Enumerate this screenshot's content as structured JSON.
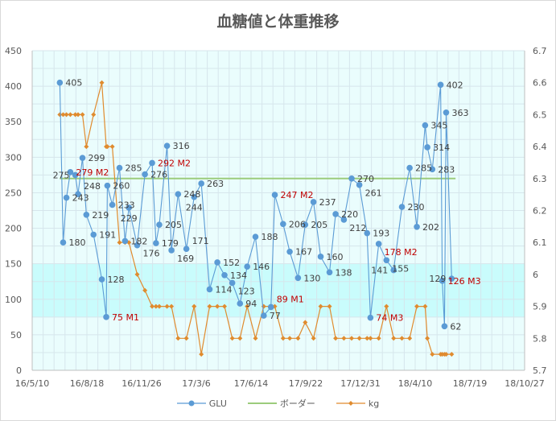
{
  "chart_data": {
    "type": "line",
    "title": "血糖値と体重推移",
    "x_origin_date": "16/5/10",
    "x_unit": "days since 16/5/10",
    "x_ticks": [
      "16/5/10",
      "16/8/18",
      "16/11/26",
      "17/3/6",
      "17/6/14",
      "17/9/22",
      "17/12/31",
      "18/4/10",
      "18/7/19",
      "18/10/27"
    ],
    "x_tick_step_days": 99,
    "xlim": [
      0,
      891
    ],
    "y_left": {
      "ylim": [
        0,
        450
      ],
      "ticks": [
        "0",
        "50",
        "100",
        "150",
        "200",
        "250",
        "300",
        "350",
        "400",
        "450"
      ]
    },
    "y_right": {
      "ylim": [
        5.7,
        6.7
      ],
      "ticks": [
        "5.7",
        "5.8",
        "5.9",
        "6",
        "6.1",
        "6.2",
        "6.3",
        "6.4",
        "6.5",
        "6.6",
        "6.7"
      ]
    },
    "target_band": {
      "from": 75,
      "to": 150,
      "color": "#c9fcfc"
    },
    "grid": true,
    "legend_position": "bottom",
    "series": [
      {
        "name": "GLU",
        "axis": "left",
        "color": "#5b9bd5",
        "marker": "circle",
        "x": [
          50,
          56,
          62,
          69,
          78,
          83,
          91,
          98,
          111,
          126,
          134,
          136,
          145,
          158,
          168,
          175,
          190,
          204,
          217,
          224,
          230,
          244,
          252,
          264,
          279,
          293,
          306,
          321,
          335,
          348,
          362,
          376,
          389,
          404,
          419,
          432,
          439,
          454,
          466,
          481,
          494,
          509,
          522,
          538,
          549,
          564,
          578,
          592,
          606,
          612,
          627,
          641,
          654,
          669,
          683,
          696,
          711,
          715,
          724,
          739,
          742,
          746,
          749,
          759
        ],
        "values": [
          405,
          180,
          243,
          279,
          275,
          248,
          299,
          219,
          191,
          128,
          75,
          260,
          233,
          285,
          182,
          229,
          176,
          276,
          292,
          179,
          205,
          316,
          169,
          248,
          171,
          244,
          263,
          114,
          152,
          134,
          123,
          94,
          146,
          188,
          77,
          89,
          247,
          206,
          167,
          130,
          205,
          237,
          160,
          138,
          220,
          212,
          270,
          261,
          193,
          74,
          178,
          155,
          141,
          230,
          285,
          202,
          345,
          314,
          283,
          402,
          126,
          62,
          363,
          129
        ],
        "labels": [
          "405",
          "180",
          "243",
          "279 M2",
          "275",
          "248",
          "299",
          "219",
          "191",
          "128",
          "75 M1",
          "260",
          "233",
          "285",
          "182",
          "229",
          "176",
          "276",
          "292 M2",
          "179",
          "205",
          "316",
          "169",
          "248",
          "171",
          "244",
          "263",
          "114",
          "152",
          "134",
          "123",
          "94",
          "146",
          "188",
          "77",
          "89 M1",
          "247 M2",
          "206",
          "167",
          "130",
          "205",
          "237",
          "160",
          "138",
          "220",
          "212",
          "270",
          "261",
          "193",
          "74 M3",
          "178 M2",
          "155",
          "141",
          "230",
          "285",
          "202",
          "345",
          "314",
          "283",
          "402",
          "126 M3",
          "62",
          "363",
          "129"
        ]
      },
      {
        "name": "ボーダー",
        "axis": "left",
        "color": "#9ccc7c",
        "x": [
          50,
          766
        ],
        "values": [
          270,
          270
        ]
      },
      {
        "name": "kg",
        "axis": "right",
        "color": "#e08b2e",
        "marker": "diamond",
        "x": [
          50,
          56,
          62,
          69,
          78,
          83,
          91,
          98,
          111,
          126,
          134,
          136,
          145,
          158,
          168,
          175,
          190,
          204,
          217,
          224,
          230,
          244,
          252,
          264,
          279,
          293,
          306,
          321,
          335,
          348,
          362,
          376,
          389,
          404,
          419,
          432,
          439,
          454,
          466,
          481,
          494,
          509,
          522,
          538,
          549,
          564,
          578,
          592,
          606,
          612,
          627,
          641,
          654,
          669,
          683,
          696,
          711,
          715,
          724,
          739,
          742,
          746,
          749,
          759
        ],
        "values": [
          6.5,
          6.5,
          6.5,
          6.5,
          6.5,
          6.5,
          6.5,
          6.4,
          6.5,
          6.6,
          6.4,
          6.4,
          6.4,
          6.1,
          6.1,
          6.1,
          6.0,
          5.95,
          5.9,
          5.9,
          5.9,
          5.9,
          5.9,
          5.8,
          5.8,
          5.9,
          5.75,
          5.9,
          5.9,
          5.9,
          5.8,
          5.8,
          5.9,
          5.8,
          5.9,
          5.9,
          5.9,
          5.8,
          5.8,
          5.8,
          5.85,
          5.8,
          5.9,
          5.9,
          5.8,
          5.8,
          5.8,
          5.8,
          5.8,
          5.8,
          5.8,
          5.9,
          5.8,
          5.8,
          5.8,
          5.9,
          5.9,
          5.8,
          5.75,
          5.75,
          5.75,
          5.75,
          5.75,
          5.75
        ]
      }
    ]
  }
}
